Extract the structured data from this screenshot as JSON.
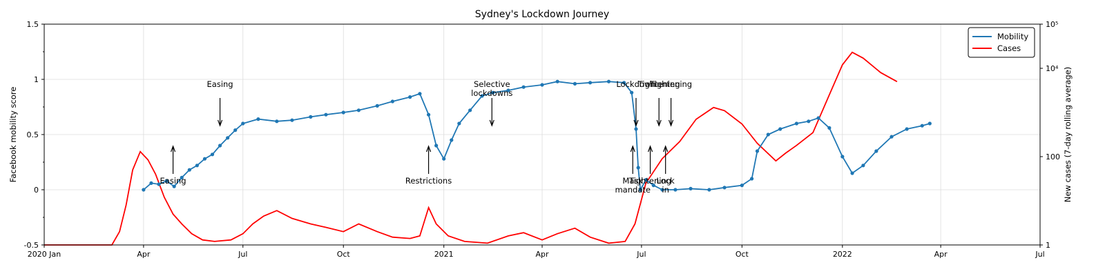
{
  "chart_data": {
    "type": "line",
    "title": "Sydney's Lockdown Journey",
    "ylabel_left": "Facebook mobility score",
    "ylabel_right": "New cases (7-day rolling average)",
    "x_ticks": [
      {
        "label": "2020 Jan",
        "date": "2020-01-01"
      },
      {
        "label": "Apr",
        "date": "2020-04-01"
      },
      {
        "label": "Jul",
        "date": "2020-07-01"
      },
      {
        "label": "Oct",
        "date": "2020-10-01"
      },
      {
        "label": "2021",
        "date": "2021-01-01"
      },
      {
        "label": "Apr",
        "date": "2021-04-01"
      },
      {
        "label": "Jul",
        "date": "2021-07-01"
      },
      {
        "label": "Oct",
        "date": "2021-10-01"
      },
      {
        "label": "2022",
        "date": "2022-01-01"
      },
      {
        "label": "Apr",
        "date": "2022-04-01"
      },
      {
        "label": "Jul",
        "date": "2022-07-01"
      }
    ],
    "xlim": [
      "2020-01-01",
      "2022-07-01"
    ],
    "ylim_left": [
      -0.5,
      1.5
    ],
    "y_ticks_left": [
      "-0.5",
      "0",
      "0.5",
      "1",
      "1.5"
    ],
    "y_scale_right": "log",
    "ylim_right": [
      1,
      100000
    ],
    "y_ticks_right": [
      {
        "label": "1",
        "value": 1
      },
      {
        "label": "100",
        "value": 100
      },
      {
        "label": "10⁴",
        "value": 10000
      },
      {
        "label": "10⁵",
        "value": 100000
      }
    ],
    "grid": true,
    "legend_position": "top-right",
    "series": [
      {
        "name": "Mobility",
        "color": "#1f77b4",
        "marker": "circle",
        "points": [
          [
            "2020-04-01",
            0.0
          ],
          [
            "2020-04-08",
            0.06
          ],
          [
            "2020-04-15",
            0.05
          ],
          [
            "2020-04-22",
            0.08
          ],
          [
            "2020-04-29",
            0.03
          ],
          [
            "2020-05-06",
            0.11
          ],
          [
            "2020-05-13",
            0.18
          ],
          [
            "2020-05-20",
            0.22
          ],
          [
            "2020-05-27",
            0.28
          ],
          [
            "2020-06-03",
            0.32
          ],
          [
            "2020-06-10",
            0.4
          ],
          [
            "2020-06-17",
            0.47
          ],
          [
            "2020-06-24",
            0.54
          ],
          [
            "2020-07-01",
            0.6
          ],
          [
            "2020-07-15",
            0.64
          ],
          [
            "2020-08-01",
            0.62
          ],
          [
            "2020-08-15",
            0.63
          ],
          [
            "2020-09-01",
            0.66
          ],
          [
            "2020-09-15",
            0.68
          ],
          [
            "2020-10-01",
            0.7
          ],
          [
            "2020-10-15",
            0.72
          ],
          [
            "2020-11-01",
            0.76
          ],
          [
            "2020-11-15",
            0.8
          ],
          [
            "2020-12-01",
            0.84
          ],
          [
            "2020-12-10",
            0.87
          ],
          [
            "2020-12-18",
            0.68
          ],
          [
            "2020-12-25",
            0.4
          ],
          [
            "2021-01-01",
            0.28
          ],
          [
            "2021-01-08",
            0.45
          ],
          [
            "2021-01-15",
            0.6
          ],
          [
            "2021-01-25",
            0.72
          ],
          [
            "2021-02-05",
            0.85
          ],
          [
            "2021-02-15",
            0.88
          ],
          [
            "2021-03-01",
            0.9
          ],
          [
            "2021-03-15",
            0.93
          ],
          [
            "2021-04-01",
            0.95
          ],
          [
            "2021-04-15",
            0.98
          ],
          [
            "2021-05-01",
            0.96
          ],
          [
            "2021-05-15",
            0.97
          ],
          [
            "2021-06-01",
            0.98
          ],
          [
            "2021-06-15",
            0.97
          ],
          [
            "2021-06-22",
            0.88
          ],
          [
            "2021-06-26",
            0.55
          ],
          [
            "2021-06-28",
            0.2
          ],
          [
            "2021-06-30",
            0.0
          ],
          [
            "2021-07-05",
            0.09
          ],
          [
            "2021-07-12",
            0.04
          ],
          [
            "2021-07-20",
            0.0
          ],
          [
            "2021-08-01",
            0.0
          ],
          [
            "2021-08-15",
            0.01
          ],
          [
            "2021-09-01",
            0.0
          ],
          [
            "2021-09-15",
            0.02
          ],
          [
            "2021-10-01",
            0.04
          ],
          [
            "2021-10-10",
            0.1
          ],
          [
            "2021-10-15",
            0.35
          ],
          [
            "2021-10-25",
            0.5
          ],
          [
            "2021-11-05",
            0.55
          ],
          [
            "2021-11-20",
            0.6
          ],
          [
            "2021-12-01",
            0.62
          ],
          [
            "2021-12-10",
            0.65
          ],
          [
            "2021-12-20",
            0.56
          ],
          [
            "2022-01-01",
            0.3
          ],
          [
            "2022-01-10",
            0.15
          ],
          [
            "2022-01-20",
            0.22
          ],
          [
            "2022-02-01",
            0.35
          ],
          [
            "2022-02-15",
            0.48
          ],
          [
            "2022-03-01",
            0.55
          ],
          [
            "2022-03-15",
            0.58
          ],
          [
            "2022-03-22",
            0.6
          ]
        ]
      },
      {
        "name": "Cases",
        "color": "#ff0000",
        "marker": "none",
        "points": [
          [
            "2020-01-01",
            1
          ],
          [
            "2020-03-03",
            1
          ],
          [
            "2020-03-10",
            2
          ],
          [
            "2020-03-16",
            8
          ],
          [
            "2020-03-22",
            50
          ],
          [
            "2020-03-29",
            130
          ],
          [
            "2020-04-05",
            85
          ],
          [
            "2020-04-12",
            40
          ],
          [
            "2020-04-20",
            12
          ],
          [
            "2020-04-28",
            5
          ],
          [
            "2020-05-06",
            3
          ],
          [
            "2020-05-15",
            1.8
          ],
          [
            "2020-05-25",
            1.3
          ],
          [
            "2020-06-05",
            1.2
          ],
          [
            "2020-06-20",
            1.3
          ],
          [
            "2020-07-01",
            1.8
          ],
          [
            "2020-07-10",
            3
          ],
          [
            "2020-07-20",
            4.5
          ],
          [
            "2020-08-01",
            6
          ],
          [
            "2020-08-15",
            4
          ],
          [
            "2020-09-01",
            3
          ],
          [
            "2020-09-15",
            2.5
          ],
          [
            "2020-10-01",
            2
          ],
          [
            "2020-10-15",
            3
          ],
          [
            "2020-11-01",
            2
          ],
          [
            "2020-11-15",
            1.5
          ],
          [
            "2020-12-01",
            1.4
          ],
          [
            "2020-12-10",
            1.6
          ],
          [
            "2020-12-18",
            7
          ],
          [
            "2020-12-25",
            3
          ],
          [
            "2021-01-05",
            1.6
          ],
          [
            "2021-01-20",
            1.2
          ],
          [
            "2021-02-10",
            1.1
          ],
          [
            "2021-03-01",
            1.6
          ],
          [
            "2021-03-15",
            1.9
          ],
          [
            "2021-04-01",
            1.3
          ],
          [
            "2021-04-15",
            1.8
          ],
          [
            "2021-05-01",
            2.4
          ],
          [
            "2021-05-15",
            1.5
          ],
          [
            "2021-06-01",
            1.1
          ],
          [
            "2021-06-16",
            1.2
          ],
          [
            "2021-06-25",
            3
          ],
          [
            "2021-07-05",
            25
          ],
          [
            "2021-07-20",
            90
          ],
          [
            "2021-08-05",
            220
          ],
          [
            "2021-08-20",
            700
          ],
          [
            "2021-09-05",
            1300
          ],
          [
            "2021-09-15",
            1100
          ],
          [
            "2021-10-01",
            550
          ],
          [
            "2021-10-15",
            200
          ],
          [
            "2021-11-01",
            80
          ],
          [
            "2021-11-10",
            120
          ],
          [
            "2021-11-20",
            180
          ],
          [
            "2021-12-05",
            350
          ],
          [
            "2021-12-20",
            2500
          ],
          [
            "2022-01-01",
            12000
          ],
          [
            "2022-01-10",
            23000
          ],
          [
            "2022-01-20",
            17000
          ],
          [
            "2022-02-05",
            8000
          ],
          [
            "2022-02-20",
            5000
          ]
        ]
      }
    ],
    "annotations": [
      {
        "label": [
          "Easing"
        ],
        "date": "2020-04-28",
        "arrow": "up"
      },
      {
        "label": [
          "Easing"
        ],
        "date": "2020-06-10",
        "arrow": "down"
      },
      {
        "label": [
          "Restrictions"
        ],
        "date": "2020-12-18",
        "arrow": "up"
      },
      {
        "label": [
          "Selective",
          "lockdowns"
        ],
        "date": "2021-02-14",
        "arrow": "down"
      },
      {
        "label": [
          "Mask",
          "mandate"
        ],
        "date": "2021-06-23",
        "arrow": "up"
      },
      {
        "label": [
          "Lockdown"
        ],
        "date": "2021-06-26",
        "arrow": "down"
      },
      {
        "label": [
          "Tightening"
        ],
        "date": "2021-07-09",
        "arrow": "up"
      },
      {
        "label": [
          "Tightening"
        ],
        "date": "2021-07-17",
        "arrow": "down"
      },
      {
        "label": [
          "Lock",
          "in"
        ],
        "date": "2021-07-23",
        "arrow": "up"
      },
      {
        "label": [
          "Tightening"
        ],
        "date": "2021-07-28",
        "arrow": "down"
      }
    ]
  }
}
